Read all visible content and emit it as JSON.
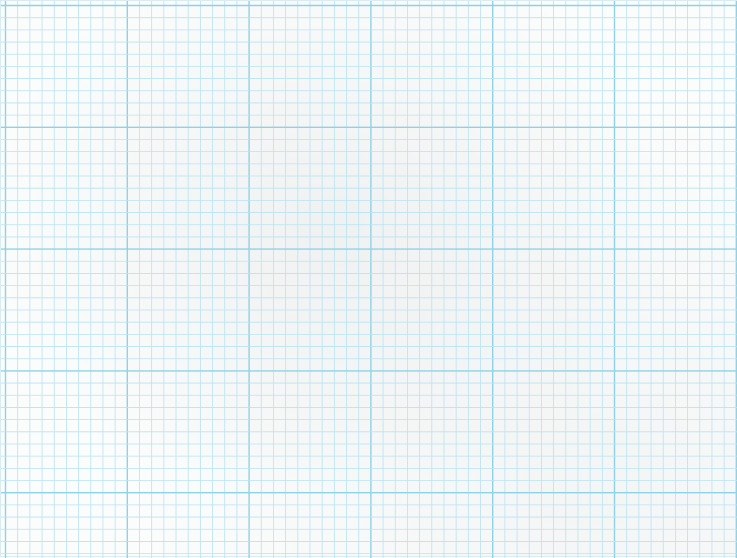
{
  "paper": {
    "kind": "graph-paper",
    "colors": {
      "paper": "#fbfcfc",
      "minor_line": "#b9e3f0",
      "major_line": "#8fd2e6",
      "edge": "#d7ecf3"
    },
    "cells_per_major_division": 10
  }
}
